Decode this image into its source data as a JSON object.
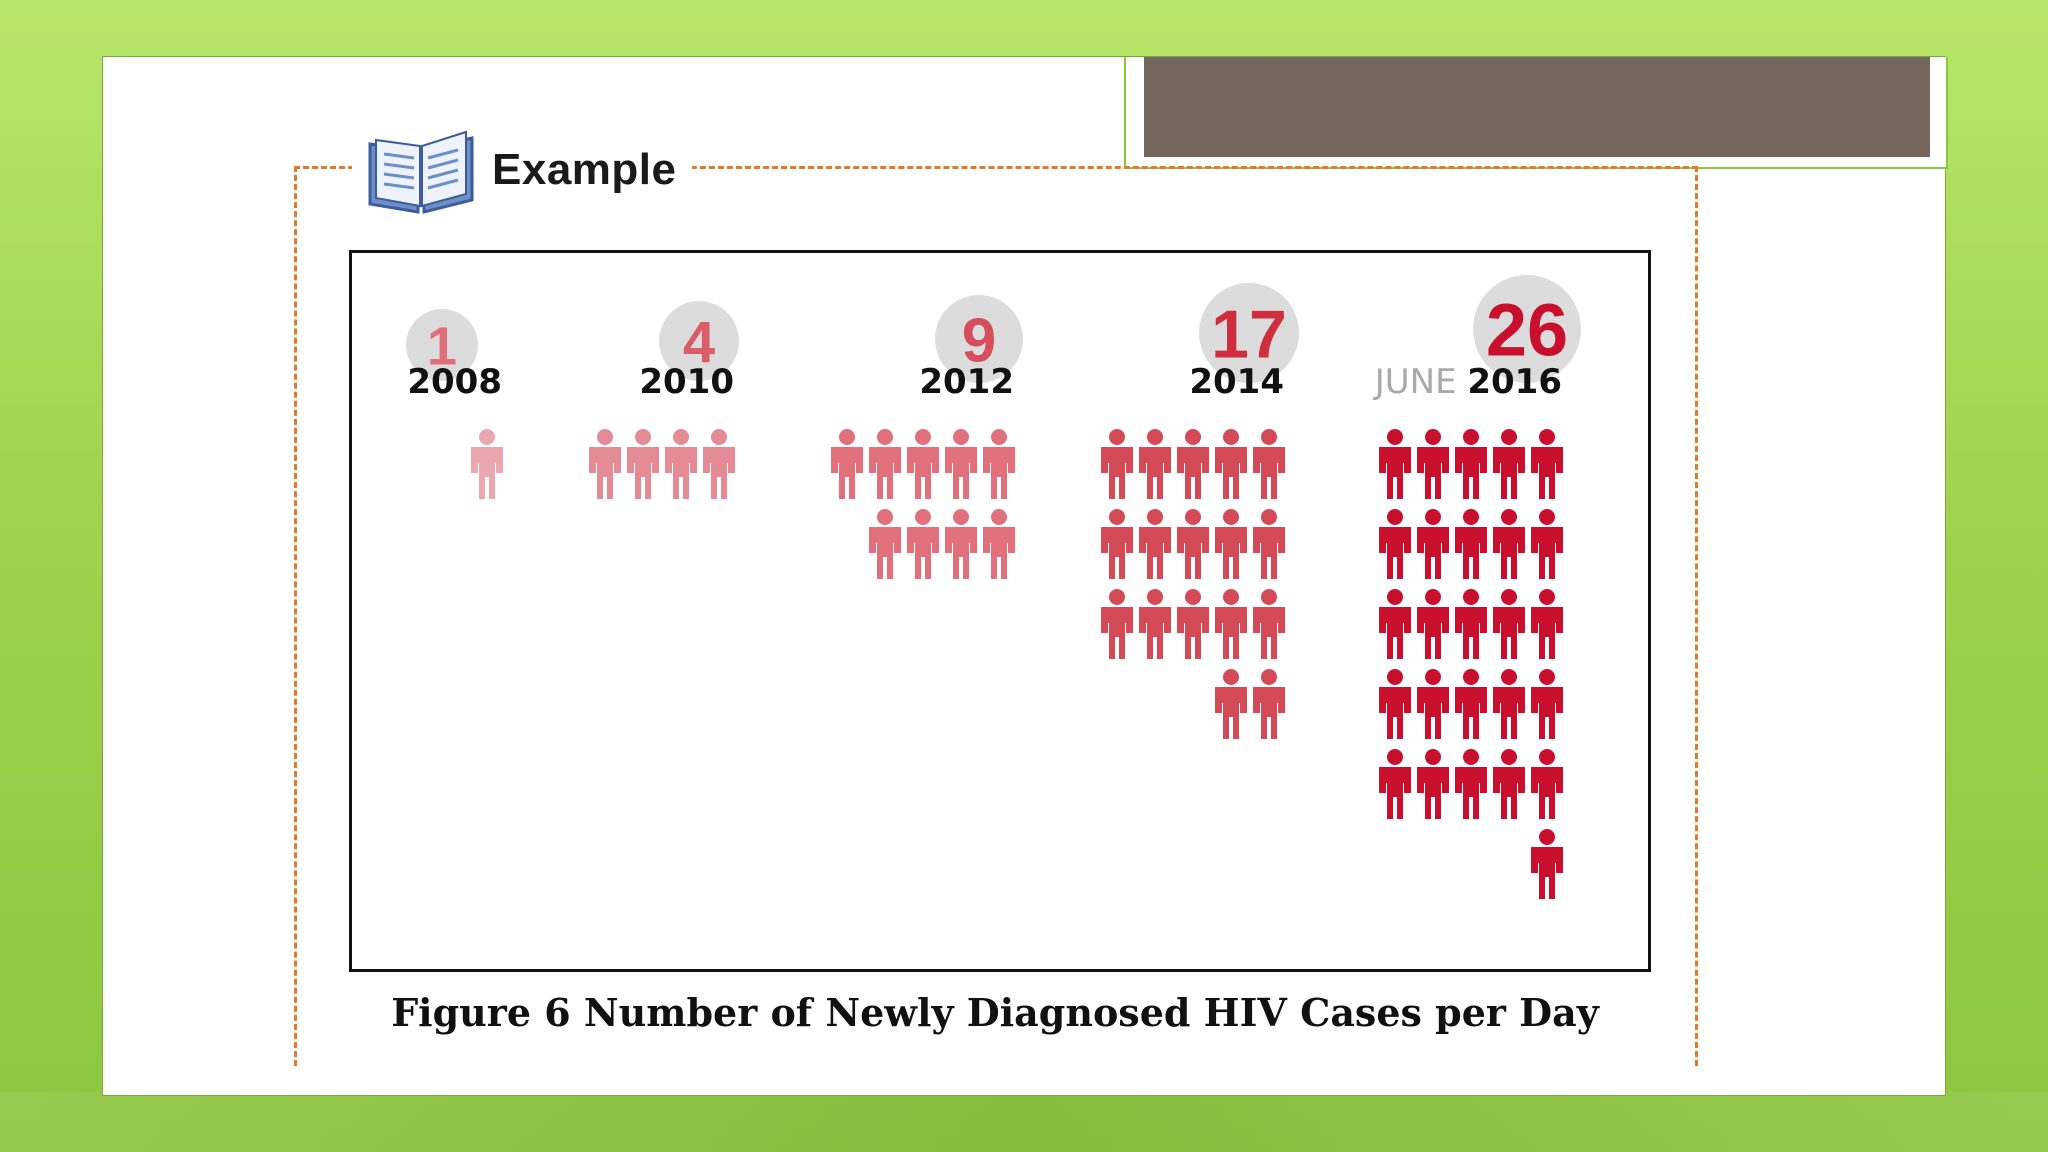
{
  "slide": {
    "example_label": "Example",
    "caption": "Figure 6 Number of Newly Diagnosed HIV Cases per Day"
  },
  "icons": {
    "header": "open-book-icon",
    "mark": "person-icon"
  },
  "chart_data": {
    "type": "pictogram",
    "title": "",
    "xlabel": "",
    "ylabel": "",
    "unit_per_icon": 1,
    "icons_per_row": 5,
    "categories": [
      {
        "prefix": "",
        "year": "2008",
        "value": 1,
        "color": "#eaa7ad"
      },
      {
        "prefix": "",
        "year": "2010",
        "value": 4,
        "color": "#e58b95"
      },
      {
        "prefix": "",
        "year": "2012",
        "value": 9,
        "color": "#e1707c"
      },
      {
        "prefix": "",
        "year": "2014",
        "value": 17,
        "color": "#d44a57"
      },
      {
        "prefix": "JUNE",
        "year": "2016",
        "value": 26,
        "color": "#c8102e"
      }
    ],
    "badge_bg": "#dcdcdc",
    "number_colors": [
      "#e06f7a",
      "#da5d69",
      "#d64d5b",
      "#cf2e3f",
      "#c8102e"
    ],
    "prefix_color": "#a9a9a9",
    "year_color": "#111111"
  }
}
